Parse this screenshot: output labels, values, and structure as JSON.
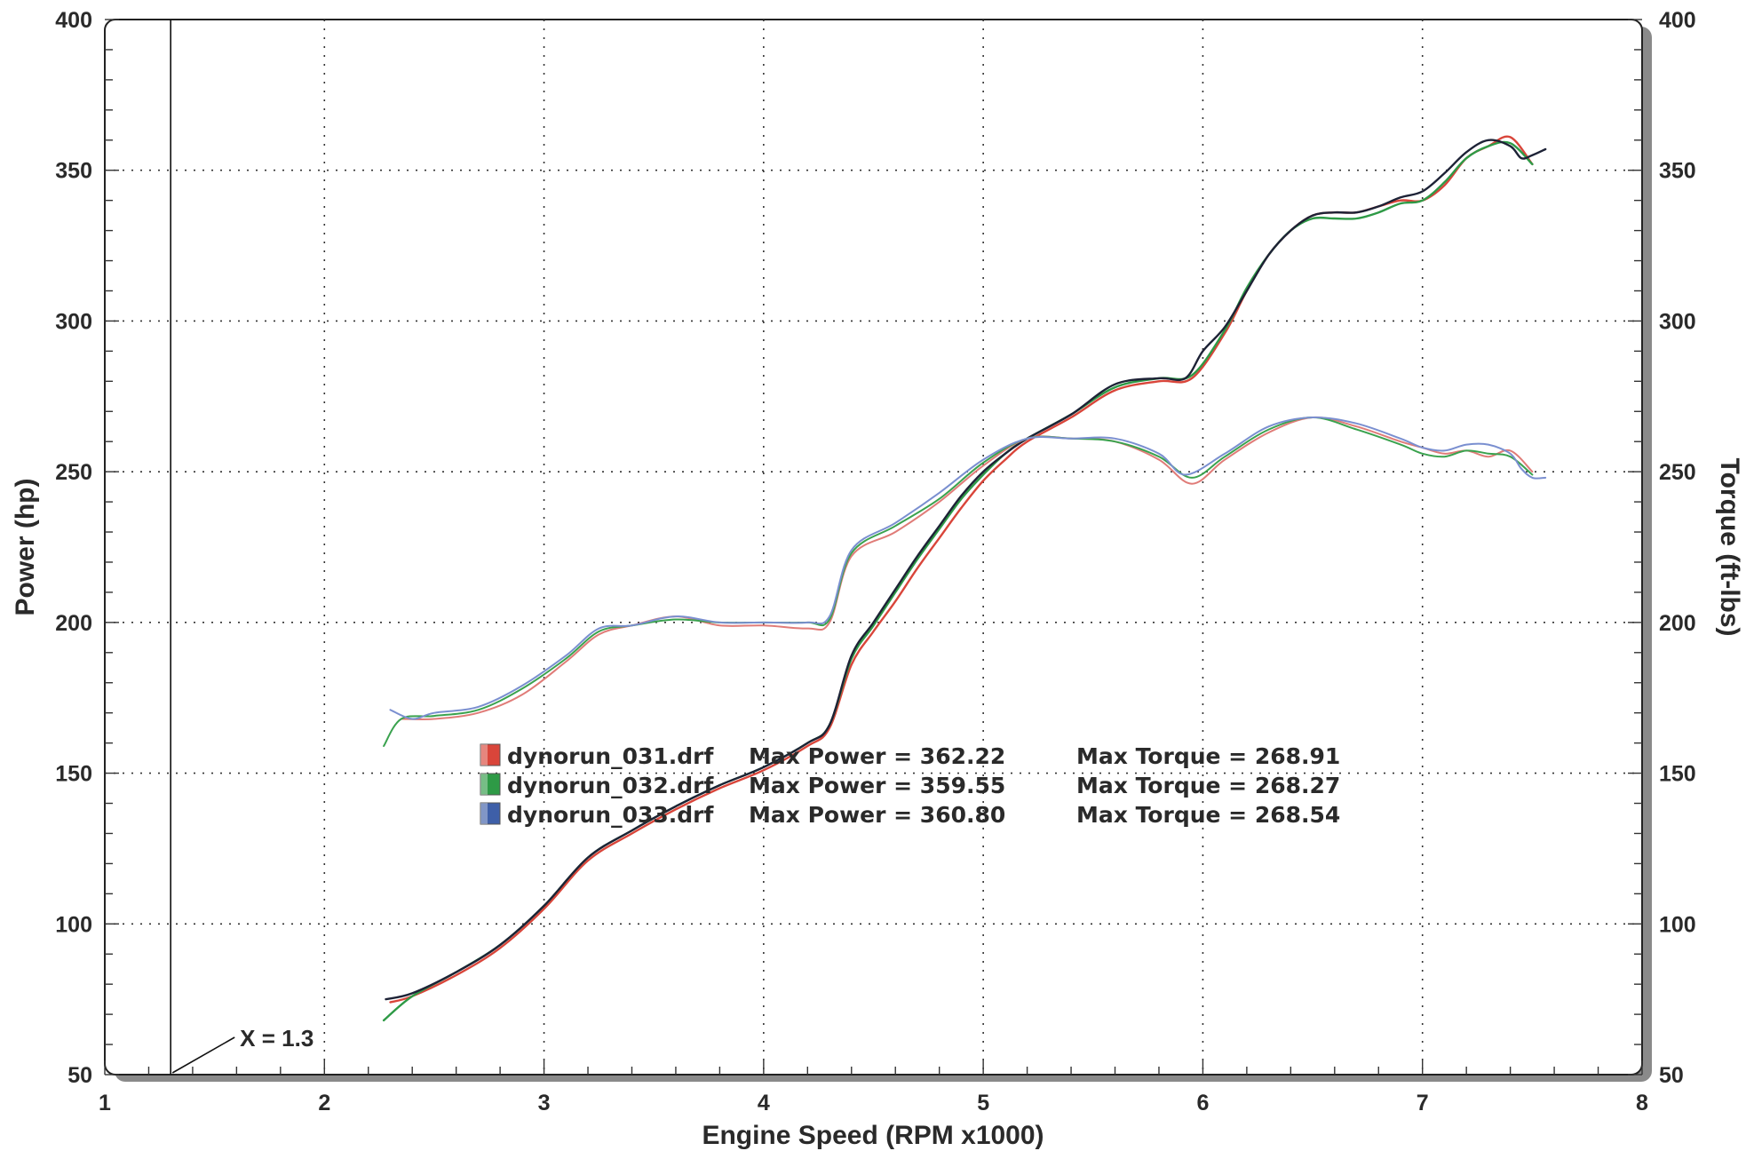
{
  "chart_data": {
    "type": "line",
    "title": "",
    "xlabel": "Engine Speed (RPM x1000)",
    "ylabel_left": "Power (hp)",
    "ylabel_right": "Torque (ft-lbs)",
    "xlim": [
      1,
      8
    ],
    "ylim_left": [
      50,
      400
    ],
    "ylim_right": [
      50,
      400
    ],
    "x_ticks": [
      1,
      2,
      3,
      4,
      5,
      6,
      7,
      8
    ],
    "y_ticks_left": [
      50,
      100,
      150,
      200,
      250,
      300,
      350,
      400
    ],
    "y_ticks_right": [
      50,
      100,
      150,
      200,
      250,
      300,
      350,
      400
    ],
    "grid": true,
    "annotation": {
      "text": "X = 1.3",
      "x": 1.3
    },
    "legend": [
      {
        "file": "dynorun_031.drf",
        "power_text": "Max Power = 362.22",
        "torque_text": "Max Torque = 268.91",
        "color": "#d9453a"
      },
      {
        "file": "dynorun_032.drf",
        "power_text": "Max Power = 359.55",
        "torque_text": "Max Torque = 268.27",
        "color": "#2e9a46"
      },
      {
        "file": "dynorun_033.drf",
        "power_text": "Max Power = 360.80",
        "torque_text": "Max Torque = 268.54",
        "color": "#3e5fa8"
      }
    ],
    "series": [
      {
        "name": "dynorun_031.drf",
        "quantity": "power",
        "color": "#d9453a",
        "x": [
          2.3,
          2.4,
          2.6,
          2.8,
          3.0,
          3.2,
          3.4,
          3.6,
          3.8,
          4.0,
          4.2,
          4.3,
          4.4,
          4.5,
          4.6,
          4.7,
          4.8,
          4.9,
          5.0,
          5.1,
          5.2,
          5.4,
          5.6,
          5.8,
          5.95,
          6.1,
          6.2,
          6.3,
          6.4,
          6.5,
          6.6,
          6.7,
          6.8,
          6.9,
          7.0,
          7.1,
          7.2,
          7.3,
          7.4,
          7.5
        ],
        "y": [
          74,
          76,
          83,
          92,
          105,
          121,
          130,
          138,
          145,
          151,
          159,
          165,
          186,
          197,
          207,
          218,
          228,
          238,
          247,
          254,
          260,
          268,
          277,
          280,
          281,
          296,
          310,
          322,
          330,
          335,
          336,
          336,
          338,
          340,
          340,
          345,
          354,
          358,
          361,
          352
        ]
      },
      {
        "name": "dynorun_032.drf",
        "quantity": "power",
        "color": "#2e9a46",
        "x": [
          2.27,
          2.4,
          2.6,
          2.8,
          3.0,
          3.2,
          3.4,
          3.6,
          3.8,
          4.0,
          4.2,
          4.3,
          4.4,
          4.5,
          4.6,
          4.7,
          4.8,
          4.9,
          5.0,
          5.1,
          5.2,
          5.4,
          5.6,
          5.8,
          5.95,
          6.1,
          6.2,
          6.3,
          6.4,
          6.5,
          6.6,
          6.7,
          6.8,
          6.9,
          7.0,
          7.1,
          7.2,
          7.3,
          7.4,
          7.5
        ],
        "y": [
          68,
          76,
          84,
          93,
          106,
          122,
          131,
          139,
          146,
          152,
          160,
          166,
          188,
          199,
          210,
          221,
          231,
          241,
          249,
          256,
          261,
          269,
          278,
          281,
          282,
          297,
          311,
          322,
          330,
          334,
          334,
          334,
          336,
          339,
          340,
          346,
          354,
          358,
          359,
          352
        ]
      },
      {
        "name": "dynorun_033.drf",
        "quantity": "power",
        "color": "#1d2236",
        "x": [
          2.28,
          2.4,
          2.6,
          2.8,
          3.0,
          3.2,
          3.4,
          3.6,
          3.8,
          4.0,
          4.2,
          4.3,
          4.4,
          4.5,
          4.6,
          4.7,
          4.8,
          4.9,
          5.0,
          5.1,
          5.2,
          5.4,
          5.6,
          5.8,
          5.92,
          6.0,
          6.1,
          6.2,
          6.3,
          6.4,
          6.5,
          6.6,
          6.7,
          6.8,
          6.9,
          7.0,
          7.1,
          7.2,
          7.3,
          7.4,
          7.45,
          7.5,
          7.56
        ],
        "y": [
          75,
          77,
          84,
          93,
          106,
          122,
          131,
          139,
          146,
          152,
          160,
          166,
          189,
          200,
          211,
          222,
          232,
          242,
          250,
          256,
          261,
          269,
          279,
          281,
          281,
          290,
          298,
          310,
          322,
          330,
          335,
          336,
          336,
          338,
          341,
          343,
          349,
          356,
          360,
          358,
          354,
          355,
          357
        ]
      },
      {
        "name": "dynorun_031.drf",
        "quantity": "torque",
        "color": "#e07c78",
        "x": [
          2.35,
          2.5,
          2.7,
          2.9,
          3.1,
          3.25,
          3.4,
          3.6,
          3.8,
          4.0,
          4.2,
          4.3,
          4.4,
          4.6,
          4.8,
          5.0,
          5.2,
          5.4,
          5.6,
          5.8,
          5.95,
          6.1,
          6.3,
          6.5,
          6.7,
          6.9,
          7.0,
          7.1,
          7.2,
          7.3,
          7.4,
          7.5
        ],
        "y": [
          168,
          168,
          170,
          176,
          187,
          196,
          199,
          202,
          199,
          199,
          198,
          200,
          222,
          230,
          240,
          252,
          261,
          261,
          260,
          254,
          246,
          254,
          263,
          268,
          265,
          260,
          258,
          256,
          257,
          255,
          257,
          250
        ]
      },
      {
        "name": "dynorun_032.drf",
        "quantity": "torque",
        "color": "#3aa24e",
        "x": [
          2.27,
          2.35,
          2.5,
          2.7,
          2.9,
          3.1,
          3.25,
          3.4,
          3.6,
          3.8,
          4.0,
          4.2,
          4.3,
          4.4,
          4.6,
          4.8,
          5.0,
          5.2,
          5.4,
          5.6,
          5.8,
          5.95,
          6.1,
          6.3,
          6.5,
          6.7,
          6.9,
          7.0,
          7.1,
          7.2,
          7.3,
          7.4,
          7.5
        ],
        "y": [
          159,
          168,
          169,
          171,
          178,
          188,
          197,
          199,
          201,
          200,
          200,
          200,
          201,
          223,
          232,
          241,
          253,
          261,
          261,
          260,
          255,
          248,
          255,
          264,
          268,
          264,
          259,
          256,
          255,
          257,
          256,
          255,
          249
        ]
      },
      {
        "name": "dynorun_033.drf",
        "quantity": "torque",
        "color": "#7a8fd0",
        "x": [
          2.3,
          2.4,
          2.5,
          2.7,
          2.9,
          3.1,
          3.25,
          3.4,
          3.6,
          3.8,
          4.0,
          4.2,
          4.3,
          4.4,
          4.6,
          4.8,
          5.0,
          5.2,
          5.4,
          5.6,
          5.8,
          5.92,
          6.1,
          6.3,
          6.5,
          6.7,
          6.9,
          7.0,
          7.1,
          7.2,
          7.3,
          7.4,
          7.45,
          7.5,
          7.56
        ],
        "y": [
          171,
          168,
          170,
          172,
          179,
          189,
          198,
          199,
          202,
          200,
          200,
          200,
          202,
          224,
          233,
          243,
          254,
          261,
          261,
          261,
          256,
          249,
          256,
          265,
          268,
          266,
          261,
          258,
          257,
          259,
          259,
          256,
          251,
          248,
          248
        ]
      }
    ]
  }
}
